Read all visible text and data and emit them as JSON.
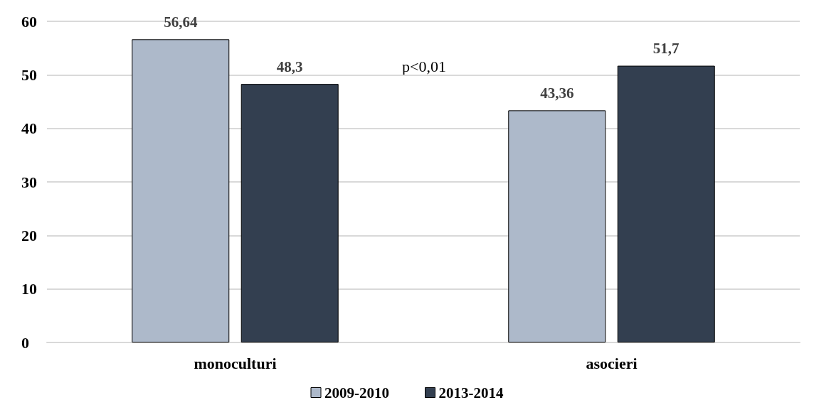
{
  "chart_data": {
    "type": "bar",
    "categories": [
      "monoculturi",
      "asocieri"
    ],
    "series": [
      {
        "name": "2009-2010",
        "color": "#adb9ca",
        "values": [
          56.64,
          43.36
        ]
      },
      {
        "name": "2013-2014",
        "color": "#333f50",
        "values": [
          48.3,
          51.7
        ]
      }
    ],
    "value_labels": [
      [
        "56,64",
        "43,36"
      ],
      [
        "48,3",
        "51,7"
      ]
    ],
    "ylim": [
      0,
      60
    ],
    "yticks": [
      0,
      10,
      20,
      30,
      40,
      50,
      60
    ],
    "grid": "y",
    "legend": "bottom",
    "annotations": [
      "p<0,01"
    ]
  }
}
